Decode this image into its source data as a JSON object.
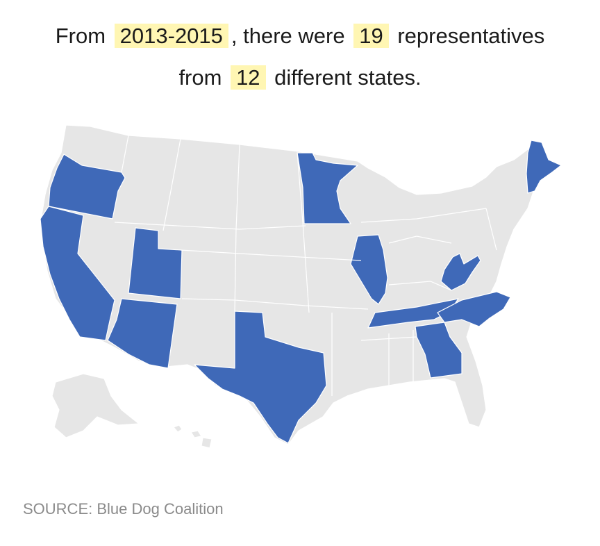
{
  "headline": {
    "line1_prefix": "From",
    "period": "2013-2015",
    "line1_mid": ", there were",
    "rep_count": "19",
    "line1_suffix": "representatives",
    "line2_prefix": "from",
    "state_count": "12",
    "line2_suffix": "different states."
  },
  "map": {
    "highlight_color": "#3f69b8",
    "base_color": "#e6e6e6",
    "highlighted_states": [
      "Oregon",
      "California",
      "Utah",
      "Arizona",
      "Texas",
      "Minnesota",
      "Illinois",
      "Tennessee",
      "West Virginia",
      "North Carolina",
      "Georgia",
      "Maine"
    ]
  },
  "source": "SOURCE: Blue Dog Coalition"
}
